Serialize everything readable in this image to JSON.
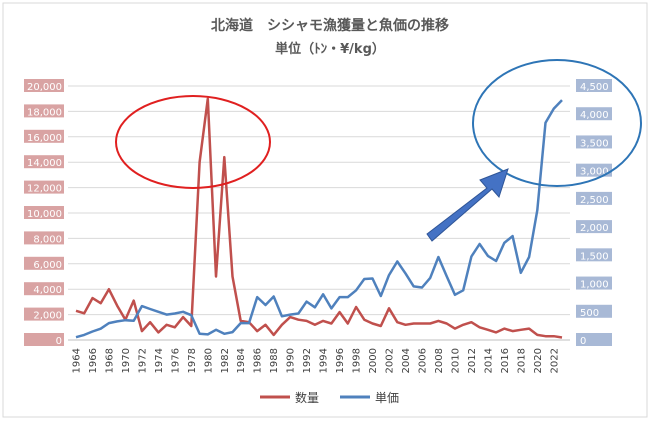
{
  "chart_data": {
    "type": "line",
    "title": "北海道　シシャモ漁獲量と魚価の推移",
    "subtitle": "単位（ﾄﾝ・¥/kg）",
    "x": [
      1964,
      1965,
      1966,
      1967,
      1968,
      1969,
      1970,
      1971,
      1972,
      1973,
      1974,
      1975,
      1976,
      1977,
      1978,
      1979,
      1980,
      1981,
      1982,
      1983,
      1984,
      1985,
      1986,
      1987,
      1988,
      1989,
      1990,
      1991,
      1992,
      1993,
      1994,
      1995,
      1996,
      1997,
      1998,
      1999,
      2000,
      2001,
      2002,
      2003,
      2004,
      2005,
      2006,
      2007,
      2008,
      2009,
      2010,
      2011,
      2012,
      2013,
      2014,
      2015,
      2016,
      2017,
      2018,
      2019,
      2020,
      2021,
      2022,
      2023
    ],
    "x_tick_labels": [
      "1964",
      "1966",
      "1968",
      "1970",
      "1972",
      "1974",
      "1976",
      "1978",
      "1980",
      "1982",
      "1984",
      "1986",
      "1988",
      "1990",
      "1992",
      "1994",
      "1996",
      "1998",
      "2000",
      "2002",
      "2004",
      "2006",
      "2008",
      "2010",
      "2012",
      "2014",
      "2016",
      "2018",
      "2020",
      "2022"
    ],
    "y_left": {
      "ticks": [
        "0",
        "2,000",
        "4,000",
        "6,000",
        "8,000",
        "10,000",
        "12,000",
        "14,000",
        "16,000",
        "18,000",
        "20,000"
      ],
      "ylim": [
        0,
        20000
      ],
      "color": "#c0504d"
    },
    "y_right": {
      "ticks": [
        "0",
        "500",
        "1,000",
        "1,500",
        "2,000",
        "2,500",
        "3,000",
        "3,500",
        "4,000",
        "4,500"
      ],
      "ylim": [
        0,
        4500
      ],
      "color": "#4f81bd"
    },
    "series": [
      {
        "name": "数量",
        "axis": "left",
        "color": "#c0504d",
        "values": [
          2300,
          2100,
          3300,
          2900,
          4000,
          2700,
          1600,
          3100,
          700,
          1400,
          600,
          1200,
          1000,
          1800,
          1100,
          14000,
          19000,
          5000,
          14400,
          5000,
          1500,
          1400,
          700,
          1200,
          400,
          1200,
          1800,
          1600,
          1500,
          1200,
          1500,
          1300,
          2200,
          1300,
          2600,
          1600,
          1300,
          1100,
          2500,
          1400,
          1200,
          1300,
          1300,
          1300,
          1500,
          1300,
          900,
          1200,
          1400,
          1000,
          800,
          600,
          900,
          700,
          800,
          900,
          400,
          300,
          300,
          200
        ],
        "legend_label": "数量"
      },
      {
        "name": "単価",
        "axis": "right",
        "color": "#4f81bd",
        "values": [
          50,
          90,
          150,
          200,
          300,
          330,
          350,
          340,
          600,
          550,
          500,
          450,
          470,
          500,
          440,
          110,
          100,
          180,
          110,
          140,
          300,
          300,
          760,
          620,
          770,
          420,
          450,
          470,
          680,
          580,
          810,
          560,
          760,
          760,
          880,
          1080,
          1090,
          780,
          1150,
          1390,
          1180,
          950,
          930,
          1100,
          1470,
          1130,
          800,
          880,
          1480,
          1700,
          1490,
          1400,
          1720,
          1840,
          1190,
          1470,
          2300,
          3850,
          4100,
          4250
        ],
        "legend_label": "単価"
      }
    ],
    "grid": true,
    "legend_position": "bottom",
    "annotations": [
      {
        "type": "ellipse",
        "color": "#e02020",
        "around": "数量 peak 1979-1982"
      },
      {
        "type": "ellipse",
        "color": "#2e75b6",
        "around": "単価 rise 2020-2023"
      },
      {
        "type": "arrow",
        "color": "#4472c4",
        "direction": "up-right"
      }
    ]
  }
}
